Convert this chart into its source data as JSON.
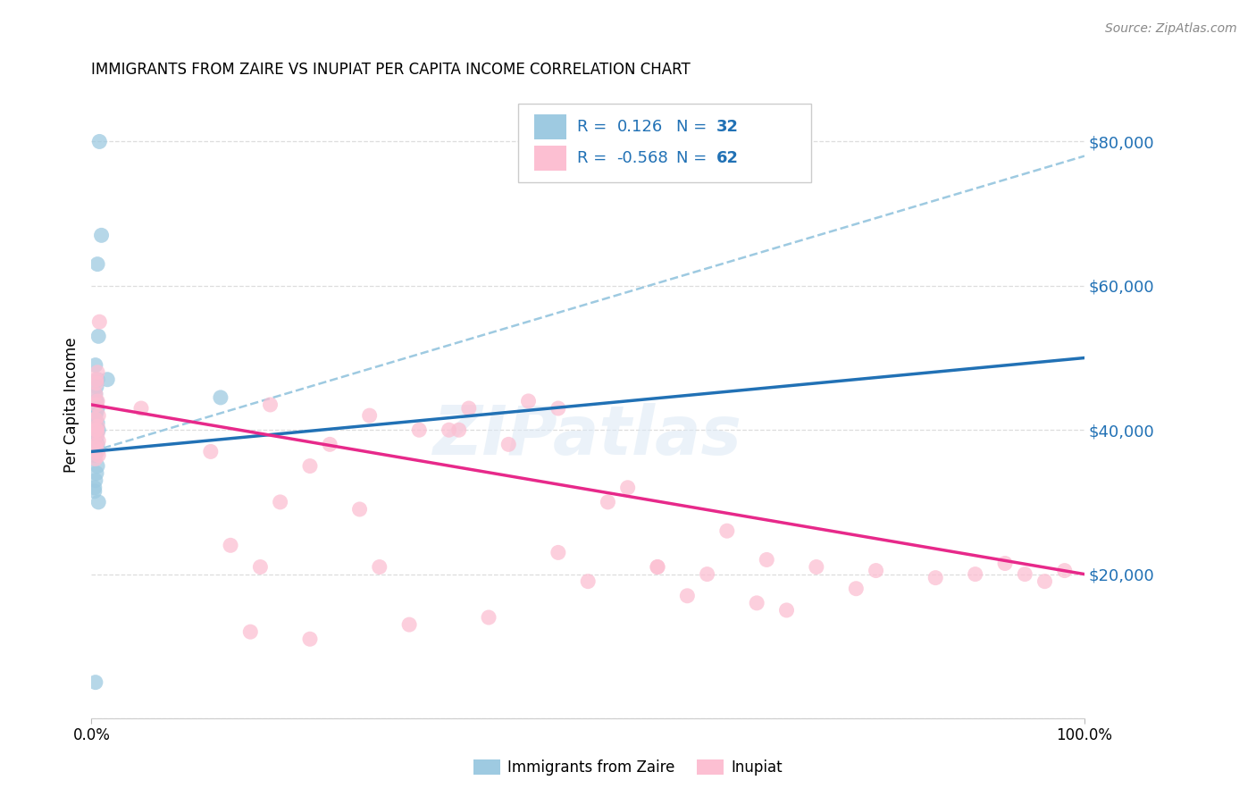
{
  "title": "IMMIGRANTS FROM ZAIRE VS INUPIAT PER CAPITA INCOME CORRELATION CHART",
  "source": "Source: ZipAtlas.com",
  "ylabel": "Per Capita Income",
  "xlim": [
    0.0,
    1.0
  ],
  "ylim": [
    0,
    87000
  ],
  "yticks": [
    0,
    20000,
    40000,
    60000,
    80000
  ],
  "ytick_labels": [
    "",
    "$20,000",
    "$40,000",
    "$60,000",
    "$80,000"
  ],
  "blue_color": "#9ecae1",
  "pink_color": "#fcbfd2",
  "blue_line_color": "#2171b5",
  "pink_line_color": "#e7298a",
  "dash_color": "#9ecae1",
  "legend_blue_color": "#2171b5",
  "watermark": "ZIPatlas",
  "blue_scatter_x": [
    0.008,
    0.01,
    0.006,
    0.007,
    0.004,
    0.006,
    0.005,
    0.004,
    0.005,
    0.006,
    0.005,
    0.004,
    0.003,
    0.006,
    0.005,
    0.007,
    0.004,
    0.005,
    0.003,
    0.006,
    0.005,
    0.004,
    0.003,
    0.016,
    0.006,
    0.005,
    0.004,
    0.003,
    0.003,
    0.007,
    0.004,
    0.13
  ],
  "blue_scatter_y": [
    80000,
    67000,
    63000,
    53000,
    49000,
    47000,
    46000,
    45000,
    44000,
    43000,
    42500,
    42000,
    41500,
    41000,
    40500,
    40000,
    39500,
    39000,
    38500,
    38000,
    37500,
    37000,
    36500,
    47000,
    35000,
    34000,
    33000,
    32000,
    31500,
    30000,
    5000,
    44500
  ],
  "pink_scatter_x": [
    0.006,
    0.005,
    0.005,
    0.004,
    0.006,
    0.005,
    0.007,
    0.004,
    0.006,
    0.005,
    0.008,
    0.005,
    0.006,
    0.007,
    0.004,
    0.005,
    0.006,
    0.007,
    0.004,
    0.05,
    0.12,
    0.18,
    0.24,
    0.28,
    0.33,
    0.38,
    0.42,
    0.47,
    0.52,
    0.57,
    0.62,
    0.68,
    0.73,
    0.79,
    0.85,
    0.89,
    0.92,
    0.94,
    0.96,
    0.98,
    0.22,
    0.14,
    0.19,
    0.29,
    0.36,
    0.44,
    0.54,
    0.64,
    0.4,
    0.5,
    0.6,
    0.7,
    0.22,
    0.32,
    0.17,
    0.27,
    0.37,
    0.47,
    0.57,
    0.67,
    0.77,
    0.16
  ],
  "pink_scatter_y": [
    48000,
    47000,
    46500,
    45000,
    44000,
    43500,
    42000,
    41500,
    40500,
    40000,
    55000,
    40000,
    39500,
    38500,
    37500,
    38000,
    37000,
    36500,
    36000,
    43000,
    37000,
    43500,
    38000,
    42000,
    40000,
    43000,
    38000,
    43000,
    30000,
    21000,
    20000,
    22000,
    21000,
    20500,
    19500,
    20000,
    21500,
    20000,
    19000,
    20500,
    35000,
    24000,
    30000,
    21000,
    40000,
    44000,
    32000,
    26000,
    14000,
    19000,
    17000,
    15000,
    11000,
    13000,
    21000,
    29000,
    40000,
    23000,
    21000,
    16000,
    18000,
    12000
  ],
  "blue_line_x0": 0.0,
  "blue_line_x1": 1.0,
  "blue_line_y0": 37000,
  "blue_line_y1": 50000,
  "pink_line_x0": 0.0,
  "pink_line_x1": 1.0,
  "pink_line_y0": 43500,
  "pink_line_y1": 20000,
  "dash_line_x0": 0.0,
  "dash_line_x1": 1.0,
  "dash_line_y0": 37000,
  "dash_line_y1": 78000,
  "legend_r1": "R =",
  "legend_v1": "0.126",
  "legend_n1": "N =",
  "legend_nv1": "32",
  "legend_r2": "R =",
  "legend_v2": "-0.568",
  "legend_n2": "N =",
  "legend_nv2": "62",
  "bottom_label1": "Immigrants from Zaire",
  "bottom_label2": "Inupiat"
}
